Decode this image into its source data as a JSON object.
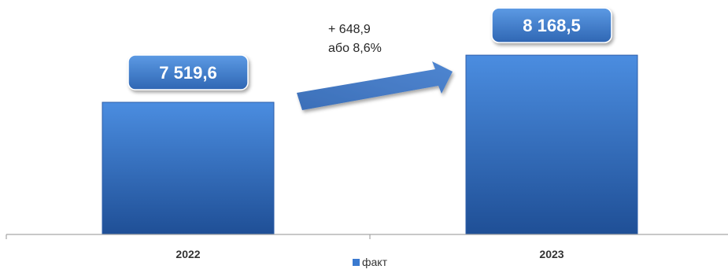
{
  "chart_data": {
    "type": "bar",
    "categories": [
      "2022",
      "2023"
    ],
    "series": [
      {
        "name": "факт",
        "values": [
          7519.6,
          8168.5
        ]
      }
    ],
    "data_labels": [
      "7 519,6",
      "8 168,5"
    ],
    "ylim": [
      5700,
      8300
    ],
    "grid": false,
    "legend_position": "bottom",
    "annotation": {
      "lines": [
        "+ 648,9",
        "або 8,6%"
      ],
      "arrow": "from 2022 to 2023"
    },
    "colors": {
      "bar": "#3a7ad0",
      "bar_dark": "#1f4f96",
      "label_box": "#3d7ccc",
      "arrow": "#4a7dc5"
    }
  }
}
